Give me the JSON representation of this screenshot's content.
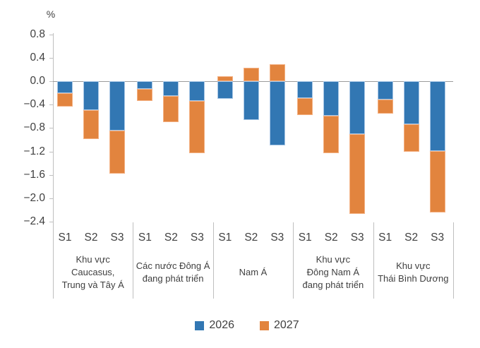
{
  "chart_data": {
    "type": "bar",
    "stacked": true,
    "title": "",
    "y_unit_label": "%",
    "ylim": [
      -2.4,
      0.8
    ],
    "ytick_step": 0.4,
    "grid": false,
    "legend_position": "bottom",
    "subcategories": [
      "S1",
      "S2",
      "S3"
    ],
    "groups": [
      {
        "label_lines": [
          "Khu vực",
          "Caucasus,",
          "Trung và Tây Á"
        ]
      },
      {
        "label_lines": [
          "Các nước Đông Á",
          "đang phát triển"
        ]
      },
      {
        "label_lines": [
          "Nam Á"
        ]
      },
      {
        "label_lines": [
          "Khu vực",
          "Đông Nam Á",
          "đang phát triển"
        ]
      },
      {
        "label_lines": [
          "Khu vực",
          "Thái Bình Dương"
        ]
      }
    ],
    "series": [
      {
        "name": "2026",
        "color": "#3277b3",
        "border_color": "#a9c7e6",
        "values": [
          [
            -0.21,
            -0.49,
            -0.84
          ],
          [
            -0.13,
            -0.25,
            -0.34
          ],
          [
            -0.3,
            -0.66,
            -1.1
          ],
          [
            -0.29,
            -0.59,
            -0.9
          ],
          [
            -0.31,
            -0.74,
            -1.19
          ]
        ]
      },
      {
        "name": "2027",
        "color": "#e2843e",
        "border_color": "#f4b183",
        "values": [
          [
            -0.22,
            -0.5,
            -0.74
          ],
          [
            -0.21,
            -0.45,
            -0.89
          ],
          [
            0.08,
            0.23,
            0.29
          ],
          [
            -0.29,
            -0.64,
            -1.36
          ],
          [
            -0.24,
            -0.46,
            -1.05
          ]
        ]
      }
    ]
  }
}
